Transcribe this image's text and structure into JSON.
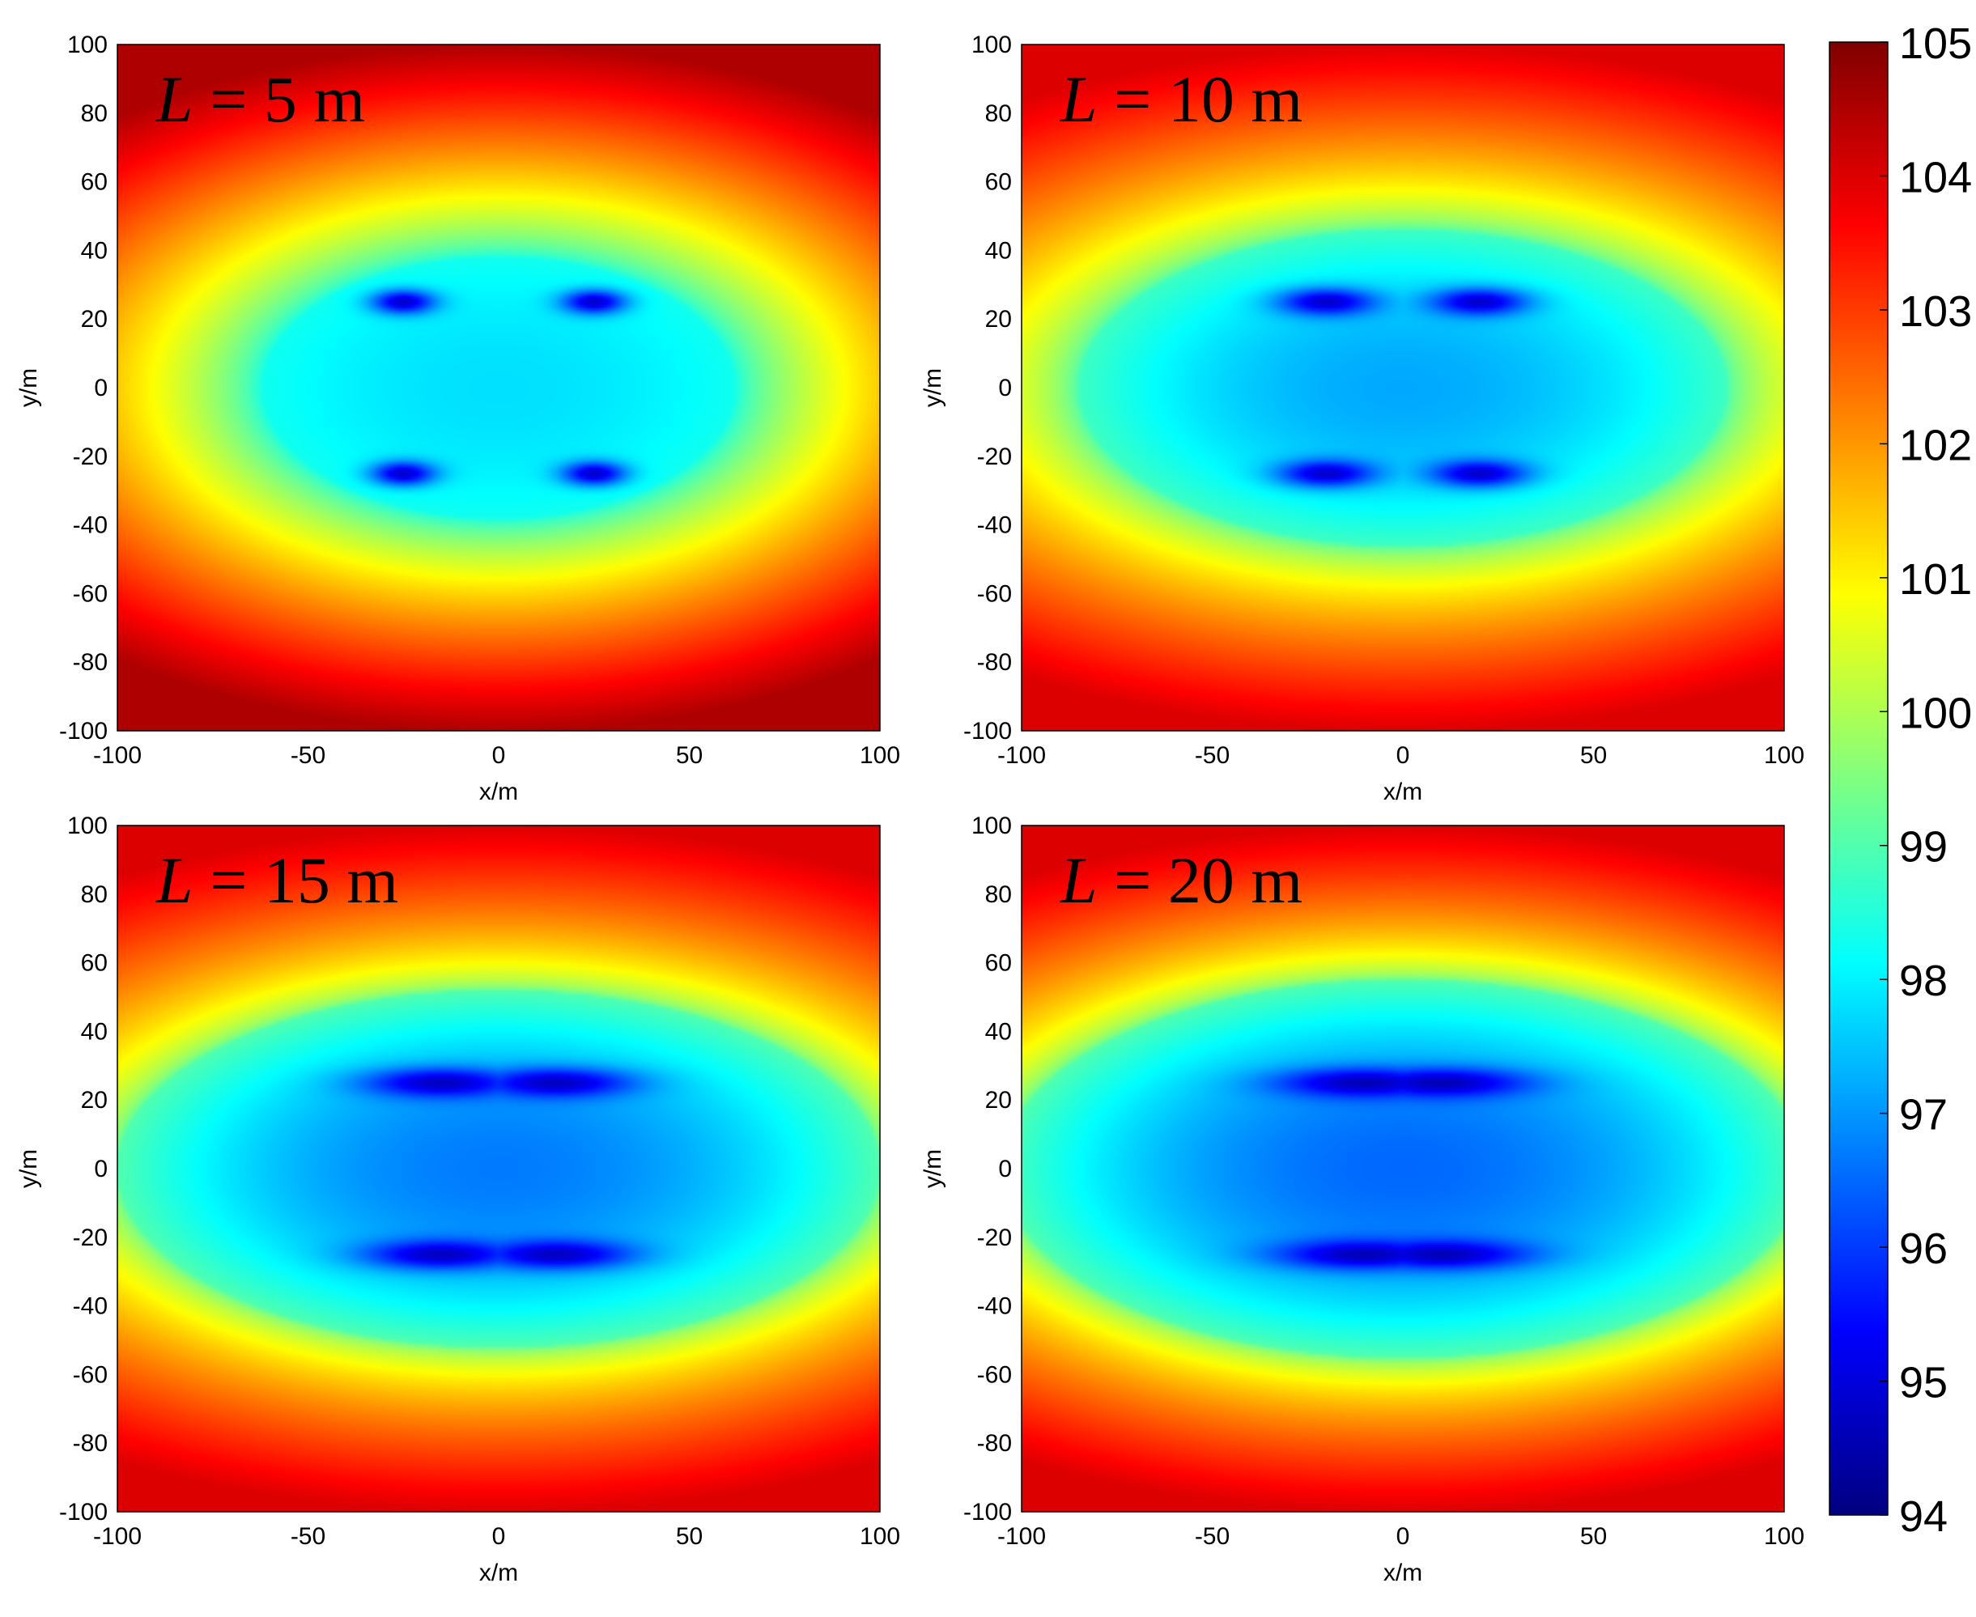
{
  "chart_data": {
    "type": "heatmap",
    "panels": [
      {
        "title": "L = 5 m",
        "title_var": "L",
        "title_rest": " = 5 m",
        "L": 5,
        "xlabel": "x/m",
        "ylabel": "y/m",
        "xlim": [
          -100,
          100
        ],
        "ylim": [
          -100,
          100
        ],
        "xticks": [
          -100,
          -50,
          0,
          50,
          100
        ],
        "yticks": [
          -100,
          -80,
          -60,
          -40,
          -20,
          0,
          20,
          40,
          60,
          80,
          100
        ],
        "field": {
          "inner_min": 97.8,
          "low": 98.3,
          "rx": 62,
          "ry": 38,
          "s": 100,
          "k": 0.7,
          "edge": 104.5,
          "corner": 105.0,
          "sources": [
            [
              -25,
              25
            ],
            [
              25,
              25
            ],
            [
              -25,
              -25
            ],
            [
              25,
              -25
            ]
          ],
          "sigma_x": 6,
          "sigma_y": 2.5,
          "min_value": 94.8
        }
      },
      {
        "title": "L = 10 m",
        "title_var": "L",
        "title_rest": " = 10 m",
        "L": 10,
        "xlabel": "x/m",
        "ylabel": "y/m",
        "xlim": [
          -100,
          100
        ],
        "ylim": [
          -100,
          100
        ],
        "xticks": [
          -100,
          -50,
          0,
          50,
          100
        ],
        "yticks": [
          -100,
          -80,
          -60,
          -40,
          -20,
          0,
          20,
          40,
          60,
          80,
          100
        ],
        "field": {
          "inner_min": 97.2,
          "low": 98.8,
          "rx": 85,
          "ry": 46,
          "s": 100,
          "k": 0.6,
          "edge": 104.0,
          "corner": 104.0,
          "sources": [
            [
              -20,
              25
            ],
            [
              20,
              25
            ],
            [
              -20,
              -25
            ],
            [
              20,
              -25
            ]
          ],
          "sigma_x": 9,
          "sigma_y": 2.8,
          "min_value": 94.8
        }
      },
      {
        "title": "L = 15 m",
        "title_var": "L",
        "title_rest": " = 15 m",
        "L": 15,
        "xlabel": "x/m",
        "ylabel": "y/m",
        "xlim": [
          -100,
          100
        ],
        "ylim": [
          -100,
          100
        ],
        "xticks": [
          -100,
          -50,
          0,
          50,
          100
        ],
        "yticks": [
          -100,
          -80,
          -60,
          -40,
          -20,
          0,
          20,
          40,
          60,
          80,
          100
        ],
        "field": {
          "inner_min": 96.7,
          "low": 99.0,
          "rx": 100,
          "ry": 52,
          "s": 100,
          "k": 0.55,
          "edge": 104.0,
          "corner": 104.0,
          "sources": [
            [
              -15,
              25
            ],
            [
              15,
              25
            ],
            [
              -15,
              -25
            ],
            [
              15,
              -25
            ]
          ],
          "sigma_x": 14,
          "sigma_y": 3.0,
          "min_value": 94.7
        }
      },
      {
        "title": "L = 20 m",
        "title_var": "L",
        "title_rest": " = 20 m",
        "L": 20,
        "xlabel": "x/m",
        "ylabel": "y/m",
        "xlim": [
          -100,
          100
        ],
        "ylim": [
          -100,
          100
        ],
        "xticks": [
          -100,
          -50,
          0,
          50,
          100
        ],
        "yticks": [
          -100,
          -80,
          -60,
          -40,
          -20,
          0,
          20,
          40,
          60,
          80,
          100
        ],
        "field": {
          "inner_min": 96.5,
          "low": 99.0,
          "rx": 105,
          "ry": 55,
          "s": 100,
          "k": 0.55,
          "edge": 104.0,
          "corner": 104.0,
          "sources": [
            [
              -10,
              25
            ],
            [
              10,
              25
            ],
            [
              -10,
              -25
            ],
            [
              10,
              -25
            ]
          ],
          "sigma_x": 16,
          "sigma_y": 3.0,
          "min_value": 94.6
        }
      }
    ],
    "colorbar": {
      "min": 94,
      "max": 105,
      "ticks": [
        94,
        95,
        96,
        97,
        98,
        99,
        100,
        101,
        102,
        103,
        104,
        105
      ],
      "colormap": "jet"
    },
    "grid": false
  }
}
